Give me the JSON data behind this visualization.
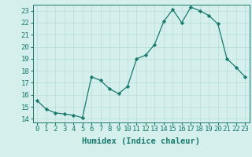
{
  "x": [
    0,
    1,
    2,
    3,
    4,
    5,
    6,
    7,
    8,
    9,
    10,
    11,
    12,
    13,
    14,
    15,
    16,
    17,
    18,
    19,
    20,
    21,
    22,
    23
  ],
  "y": [
    15.5,
    14.8,
    14.5,
    14.4,
    14.3,
    14.1,
    17.5,
    17.2,
    16.5,
    16.1,
    16.7,
    19.0,
    19.3,
    20.2,
    22.1,
    23.1,
    22.0,
    23.3,
    23.0,
    22.6,
    21.9,
    19.0,
    18.3,
    17.5
  ],
  "line_color": "#1a7a6e",
  "marker": "D",
  "marker_size": 2.2,
  "bg_color": "#d4efec",
  "grid_color": "#b8ddd9",
  "xlabel": "Humidex (Indice chaleur)",
  "xlabel_fontsize": 7.5,
  "tick_fontsize": 6.5,
  "ylim": [
    13.7,
    23.5
  ],
  "xlim": [
    -0.5,
    23.5
  ],
  "yticks": [
    14,
    15,
    16,
    17,
    18,
    19,
    20,
    21,
    22,
    23
  ],
  "xticks": [
    0,
    1,
    2,
    3,
    4,
    5,
    6,
    7,
    8,
    9,
    10,
    11,
    12,
    13,
    14,
    15,
    16,
    17,
    18,
    19,
    20,
    21,
    22,
    23
  ]
}
